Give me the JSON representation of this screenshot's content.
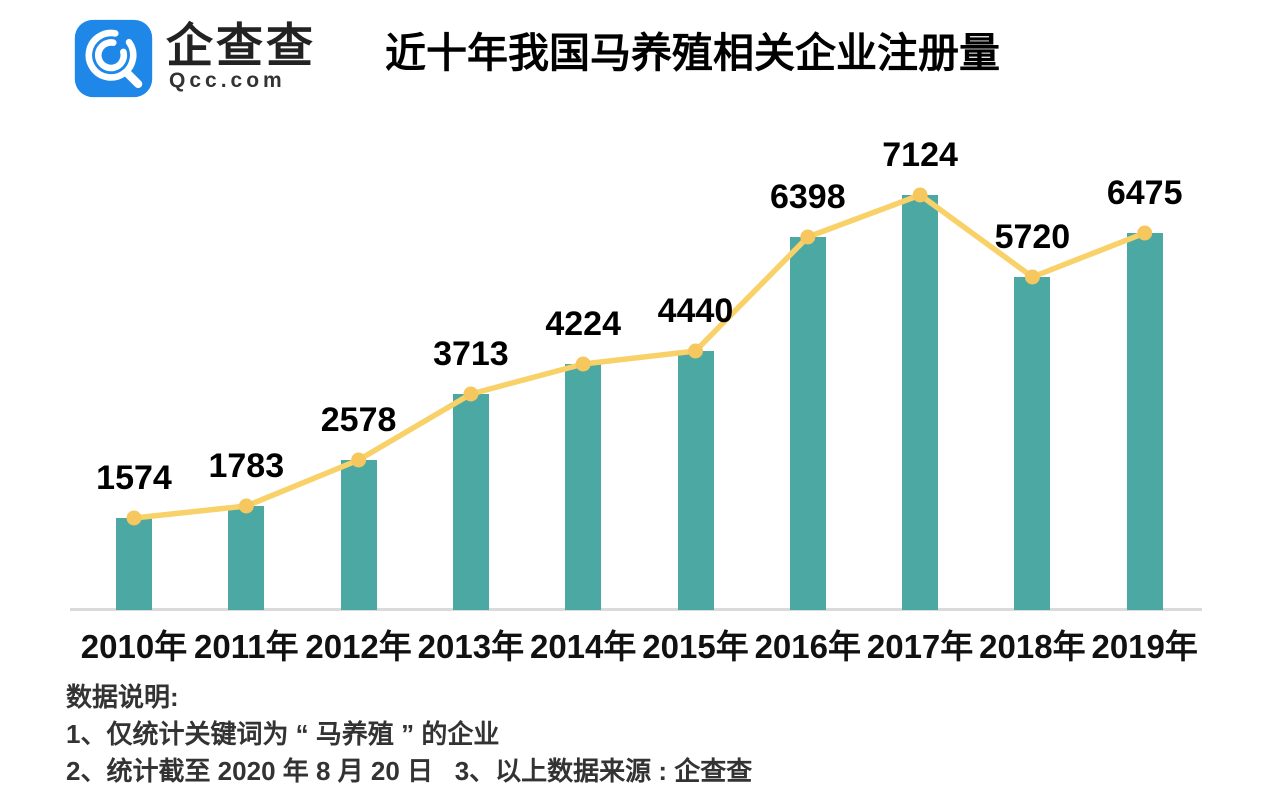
{
  "logo": {
    "name": "企查查",
    "domain": "Qcc.com",
    "brand_color": "#1E87E8"
  },
  "title": "近十年我国马养殖相关企业注册量",
  "chart_data": {
    "type": "bar",
    "subtype": "bar-with-line-overlay",
    "title": "近十年我国马养殖相关企业注册量",
    "categories": [
      "2010年",
      "2011年",
      "2012年",
      "2013年",
      "2014年",
      "2015年",
      "2016年",
      "2017年",
      "2018年",
      "2019年"
    ],
    "values": [
      1574,
      1783,
      2578,
      3713,
      4224,
      4440,
      6398,
      7124,
      5720,
      6475
    ],
    "xlabel": "",
    "ylabel": "",
    "ylim": [
      0,
      7900
    ],
    "grid": false,
    "legend": false,
    "data_labels": true,
    "bar_color": "#4BA8A2",
    "line_color": "#F8D169",
    "marker_color": "#F5C75E",
    "axis_line_color": "#DADADA"
  },
  "notes": {
    "heading": "数据说明:",
    "line1": "1、仅统计关键词为 “ 马养殖 ” 的企业",
    "line2": "2、统计截至 2020 年 8 月 20 日   3、以上数据来源 : 企查查"
  }
}
